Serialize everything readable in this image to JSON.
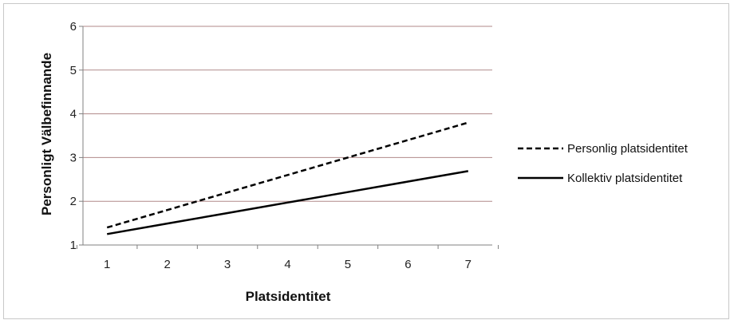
{
  "chart_data": {
    "type": "line",
    "title": "",
    "xlabel": "Platsidentitet",
    "ylabel": "Personligt Välbefinnande",
    "x": [
      1,
      2,
      3,
      4,
      5,
      6,
      7
    ],
    "xlim": [
      0.6,
      7.4
    ],
    "ylim": [
      1,
      6
    ],
    "yticks": [
      1,
      2,
      3,
      4,
      5,
      6
    ],
    "grid": "horizontal",
    "legend_position": "right",
    "series": [
      {
        "name": "Personlig platsidentitet",
        "style": "dashed",
        "color": "#000000",
        "values": [
          1.4,
          1.8,
          2.2,
          2.6,
          3.0,
          3.4,
          3.8
        ]
      },
      {
        "name": "Kollektiv platsidentitet",
        "style": "solid",
        "color": "#000000",
        "values": [
          1.25,
          1.49,
          1.73,
          1.97,
          2.21,
          2.45,
          2.69
        ]
      }
    ],
    "colors": {
      "grid": "#b08a8a",
      "axis": "#808080"
    }
  }
}
